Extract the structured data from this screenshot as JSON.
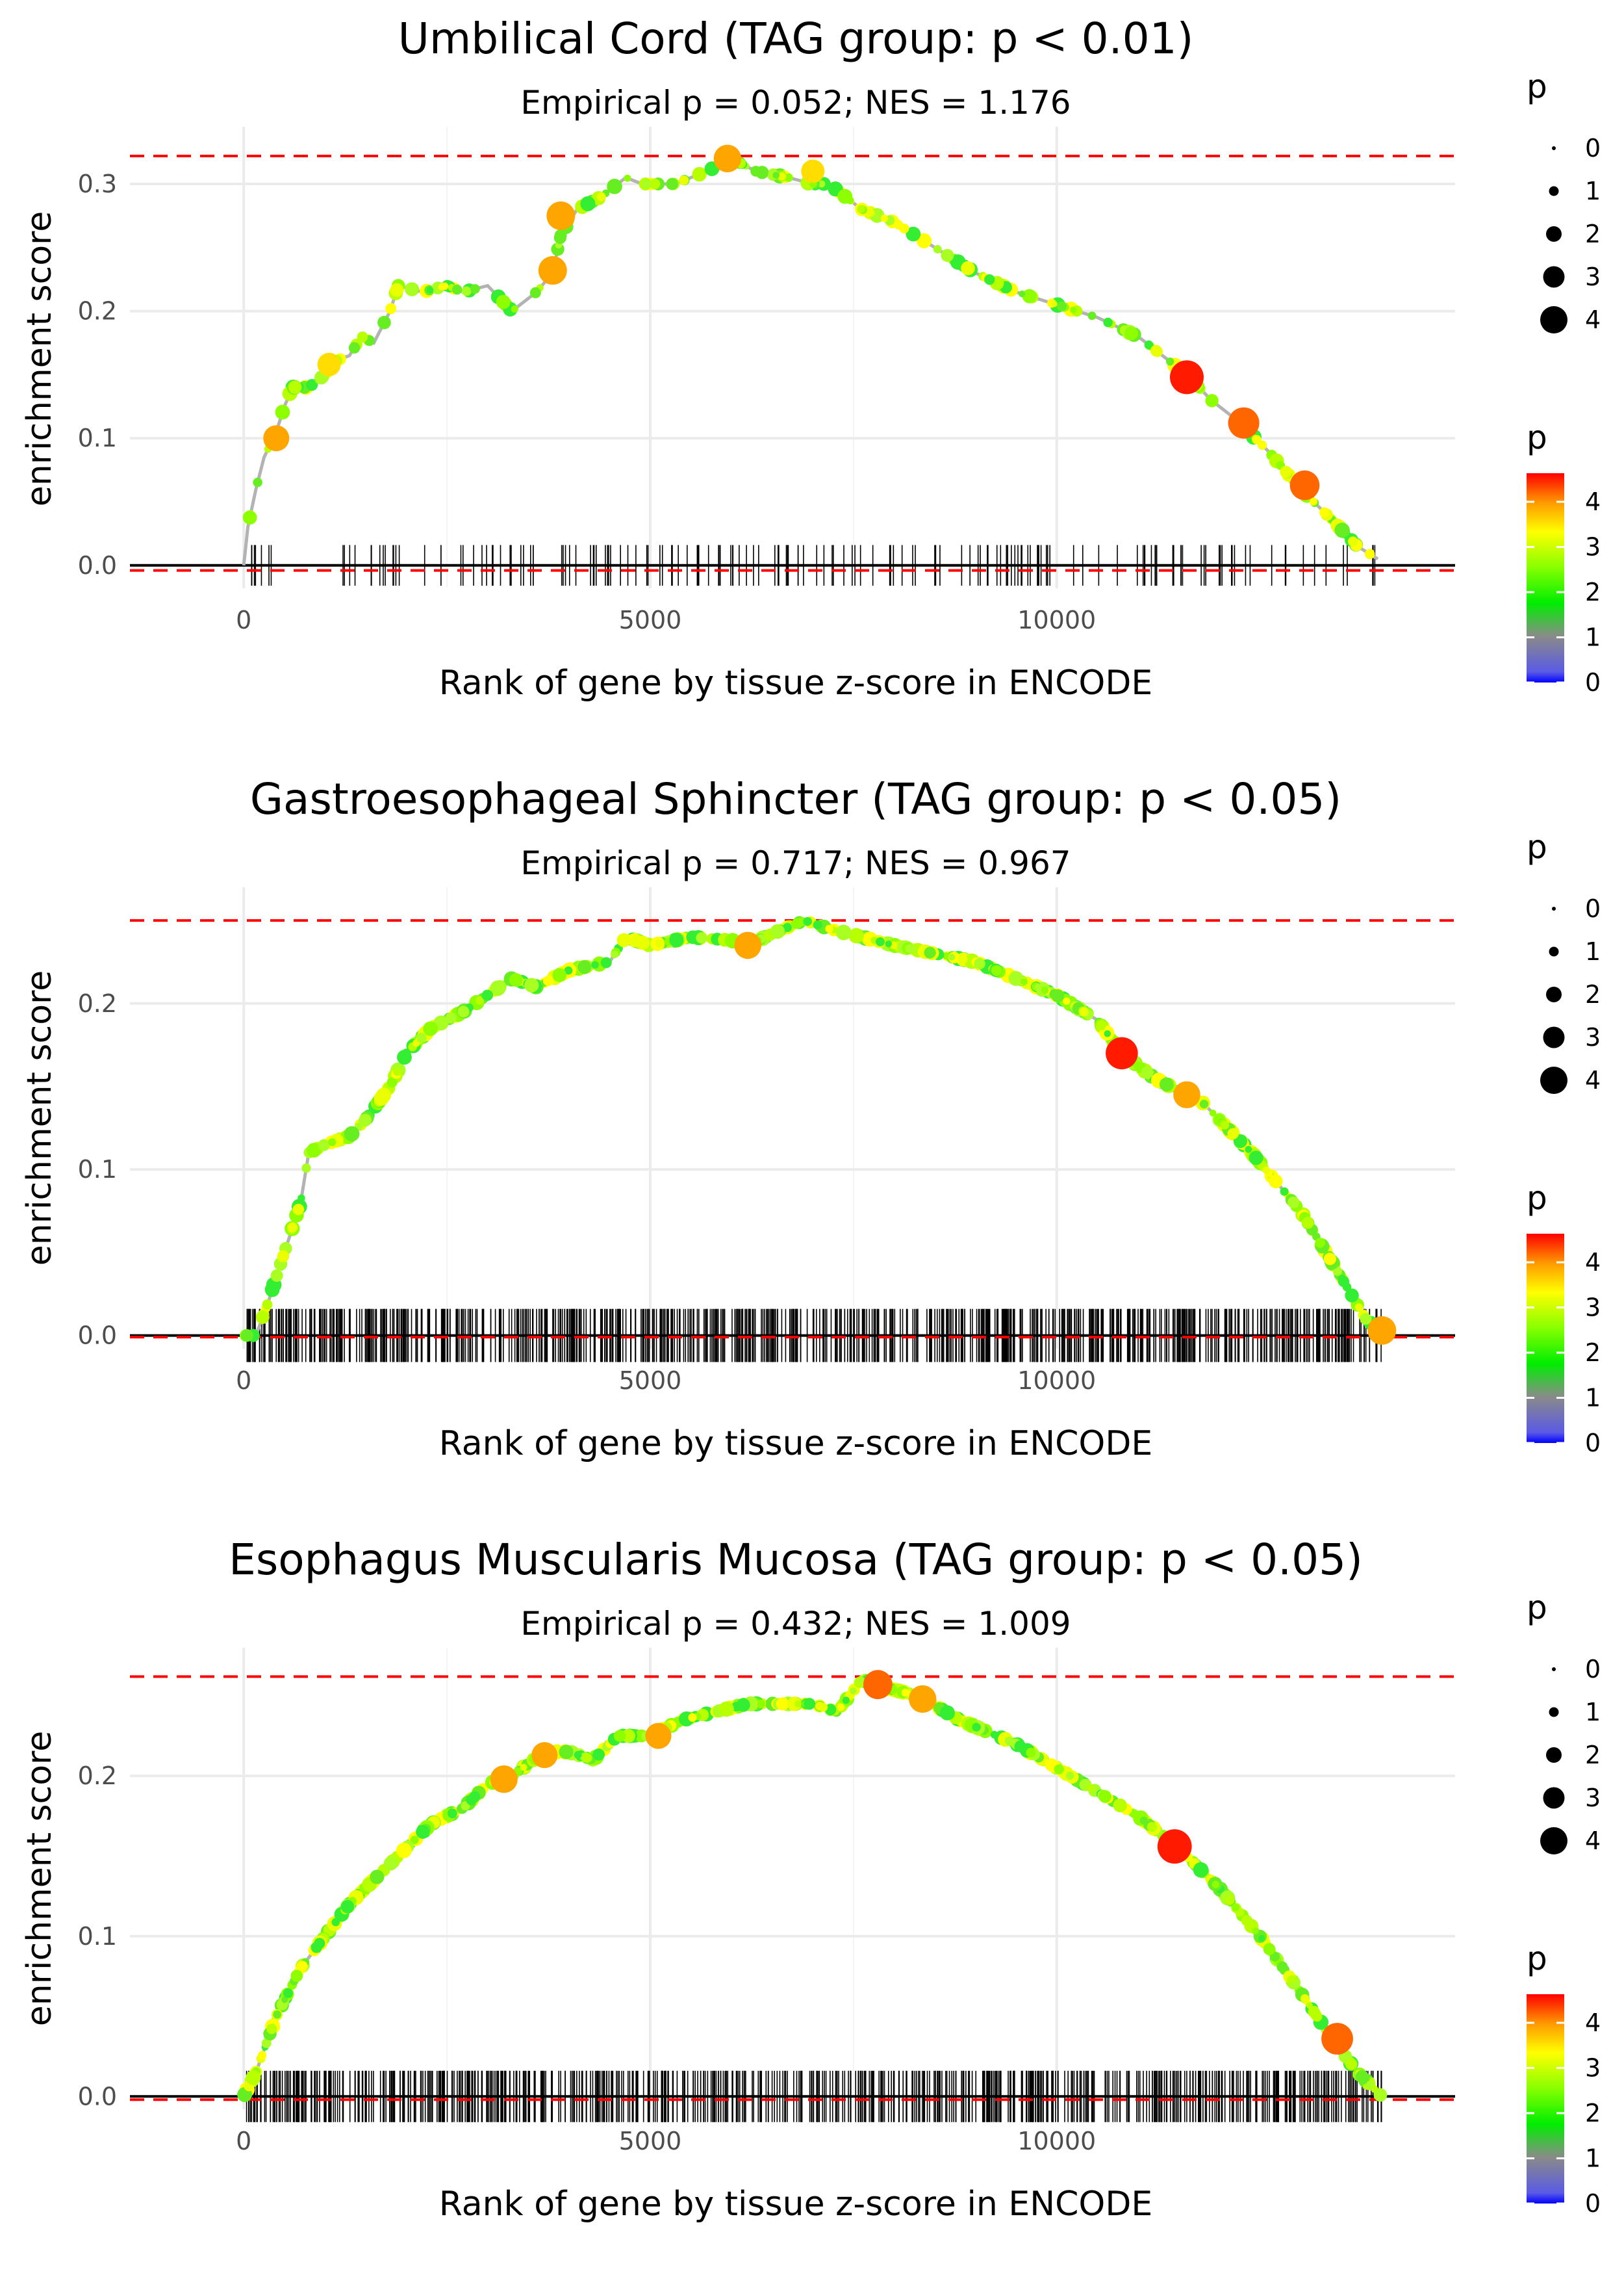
{
  "chart_data": [
    {
      "type": "line",
      "title": "Umbilical Cord (TAG group: p < 0.01)",
      "subtitle": "Empirical p = 0.052; NES = 1.176",
      "xlabel": "Rank of gene by tissue z-score in ENCODE",
      "ylabel": "enrichment score",
      "xlim": [
        -1400,
        14900
      ],
      "ylim": [
        -0.018,
        0.345
      ],
      "xticks": [
        0,
        5000,
        10000
      ],
      "xtick_labels": [
        "0",
        "5000",
        "10000"
      ],
      "yticks": [
        0.0,
        0.1,
        0.2,
        0.3
      ],
      "ytick_labels": [
        "0.0",
        "0.1",
        "0.2",
        "0.3"
      ],
      "hlines": [
        0.322,
        -0.004
      ],
      "x_max_rank": 13950,
      "curve": [
        [
          0,
          0
        ],
        [
          50,
          0.03
        ],
        [
          150,
          0.06
        ],
        [
          250,
          0.085
        ],
        [
          400,
          0.105
        ],
        [
          500,
          0.125
        ],
        [
          600,
          0.14
        ],
        [
          800,
          0.14
        ],
        [
          1000,
          0.15
        ],
        [
          1100,
          0.16
        ],
        [
          1300,
          0.165
        ],
        [
          1450,
          0.18
        ],
        [
          1600,
          0.175
        ],
        [
          1800,
          0.2
        ],
        [
          1900,
          0.22
        ],
        [
          2200,
          0.215
        ],
        [
          2500,
          0.22
        ],
        [
          2700,
          0.215
        ],
        [
          3000,
          0.22
        ],
        [
          3300,
          0.2
        ],
        [
          3600,
          0.215
        ],
        [
          3800,
          0.23
        ],
        [
          3900,
          0.26
        ],
        [
          4100,
          0.28
        ],
        [
          4400,
          0.29
        ],
        [
          4700,
          0.305
        ],
        [
          4900,
          0.3
        ],
        [
          5300,
          0.3
        ],
        [
          5700,
          0.31
        ],
        [
          6000,
          0.32
        ],
        [
          6300,
          0.31
        ],
        [
          6700,
          0.305
        ],
        [
          7000,
          0.3
        ],
        [
          7200,
          0.3
        ],
        [
          7600,
          0.28
        ],
        [
          8000,
          0.27
        ],
        [
          8500,
          0.25
        ],
        [
          9000,
          0.23
        ],
        [
          9500,
          0.215
        ],
        [
          10000,
          0.205
        ],
        [
          10500,
          0.195
        ],
        [
          11000,
          0.18
        ],
        [
          11600,
          0.15
        ],
        [
          11900,
          0.13
        ],
        [
          12200,
          0.115
        ],
        [
          12600,
          0.09
        ],
        [
          13000,
          0.06
        ],
        [
          13400,
          0.035
        ],
        [
          13700,
          0.015
        ],
        [
          13950,
          0.005
        ]
      ],
      "highlights": [
        [
          400,
          0.1,
          3
        ],
        [
          1050,
          0.158,
          2.5
        ],
        [
          3800,
          0.232,
          3.5
        ],
        [
          3900,
          0.275,
          3.5
        ],
        [
          5950,
          0.32,
          3.3
        ],
        [
          7000,
          0.31,
          2.5
        ],
        [
          11600,
          0.148,
          4.5
        ],
        [
          12300,
          0.112,
          4
        ],
        [
          13050,
          0.063,
          3.7
        ]
      ],
      "rug_count": 170,
      "legend": {
        "size_title": "p",
        "size_labels": [
          "0",
          "1",
          "2",
          "3",
          "4"
        ],
        "color_title": "p",
        "color_labels": [
          "4",
          "3",
          "2",
          "1",
          "0"
        ]
      }
    },
    {
      "type": "line",
      "title": "Gastroesophageal Sphincter (TAG group: p < 0.05)",
      "subtitle": "Empirical p = 0.717; NES = 0.967",
      "xlabel": "Rank of gene by tissue z-score in ENCODE",
      "ylabel": "enrichment score",
      "xlim": [
        -1400,
        14900
      ],
      "ylim": [
        -0.008,
        0.27
      ],
      "xticks": [
        0,
        5000,
        10000
      ],
      "xtick_labels": [
        "0",
        "5000",
        "10000"
      ],
      "yticks": [
        0.0,
        0.1,
        0.2
      ],
      "ytick_labels": [
        "0.0",
        "0.1",
        "0.2"
      ],
      "hlines": [
        0.25,
        -0.001
      ],
      "x_max_rank": 14000,
      "curve": [
        [
          150,
          0
        ],
        [
          300,
          0.02
        ],
        [
          500,
          0.05
        ],
        [
          700,
          0.08
        ],
        [
          800,
          0.11
        ],
        [
          1000,
          0.115
        ],
        [
          1300,
          0.12
        ],
        [
          1500,
          0.13
        ],
        [
          1800,
          0.15
        ],
        [
          2000,
          0.17
        ],
        [
          2300,
          0.185
        ],
        [
          2700,
          0.195
        ],
        [
          3000,
          0.205
        ],
        [
          3300,
          0.215
        ],
        [
          3600,
          0.21
        ],
        [
          4000,
          0.22
        ],
        [
          4500,
          0.225
        ],
        [
          4700,
          0.24
        ],
        [
          5000,
          0.235
        ],
        [
          5500,
          0.24
        ],
        [
          6000,
          0.238
        ],
        [
          6200,
          0.235
        ],
        [
          6500,
          0.242
        ],
        [
          6900,
          0.25
        ],
        [
          7200,
          0.245
        ],
        [
          7600,
          0.24
        ],
        [
          8000,
          0.235
        ],
        [
          8500,
          0.23
        ],
        [
          9000,
          0.225
        ],
        [
          9500,
          0.215
        ],
        [
          10000,
          0.205
        ],
        [
          10500,
          0.19
        ],
        [
          10800,
          0.17
        ],
        [
          11200,
          0.155
        ],
        [
          11800,
          0.14
        ],
        [
          12400,
          0.11
        ],
        [
          13000,
          0.075
        ],
        [
          13500,
          0.035
        ],
        [
          13800,
          0.01
        ],
        [
          14000,
          0.002
        ]
      ],
      "highlights": [
        [
          6200,
          0.235,
          3.2
        ],
        [
          10800,
          0.17,
          4.2
        ],
        [
          11600,
          0.145,
          3.2
        ],
        [
          14000,
          0.003,
          3.5
        ]
      ],
      "rug_count": 760,
      "legend": {
        "size_title": "p",
        "size_labels": [
          "0",
          "1",
          "2",
          "3",
          "4"
        ],
        "color_title": "p",
        "color_labels": [
          "4",
          "3",
          "2",
          "1",
          "0"
        ]
      }
    },
    {
      "type": "line",
      "title": "Esophagus Muscularis Mucosa (TAG group: p < 0.05)",
      "subtitle": "Empirical p = 0.432; NES = 1.009",
      "xlabel": "Rank of gene by tissue z-score in ENCODE",
      "ylabel": "enrichment score",
      "xlim": [
        -1400,
        14900
      ],
      "ylim": [
        -0.008,
        0.28
      ],
      "xticks": [
        0,
        5000,
        10000
      ],
      "xtick_labels": [
        "0",
        "5000",
        "10000"
      ],
      "yticks": [
        0.0,
        0.1,
        0.2
      ],
      "ytick_labels": [
        "0.0",
        "0.1",
        "0.2"
      ],
      "hlines": [
        0.262,
        -0.002
      ],
      "x_max_rank": 14000,
      "curve": [
        [
          0,
          0
        ],
        [
          150,
          0.015
        ],
        [
          400,
          0.05
        ],
        [
          700,
          0.08
        ],
        [
          1000,
          0.1
        ],
        [
          1300,
          0.12
        ],
        [
          1600,
          0.135
        ],
        [
          2000,
          0.155
        ],
        [
          2300,
          0.17
        ],
        [
          2700,
          0.18
        ],
        [
          3000,
          0.195
        ],
        [
          3300,
          0.2
        ],
        [
          3700,
          0.215
        ],
        [
          4000,
          0.215
        ],
        [
          4300,
          0.21
        ],
        [
          4600,
          0.225
        ],
        [
          5000,
          0.225
        ],
        [
          5400,
          0.235
        ],
        [
          5800,
          0.24
        ],
        [
          6200,
          0.245
        ],
        [
          6600,
          0.245
        ],
        [
          7000,
          0.245
        ],
        [
          7300,
          0.24
        ],
        [
          7600,
          0.26
        ],
        [
          7900,
          0.255
        ],
        [
          8300,
          0.25
        ],
        [
          8800,
          0.235
        ],
        [
          9500,
          0.22
        ],
        [
          10000,
          0.205
        ],
        [
          10500,
          0.19
        ],
        [
          11000,
          0.175
        ],
        [
          11500,
          0.155
        ],
        [
          12000,
          0.13
        ],
        [
          12500,
          0.1
        ],
        [
          13000,
          0.065
        ],
        [
          13400,
          0.035
        ],
        [
          13700,
          0.015
        ],
        [
          14000,
          0
        ]
      ],
      "highlights": [
        [
          3200,
          0.198,
          3.3
        ],
        [
          3700,
          0.213,
          3
        ],
        [
          5100,
          0.225,
          3
        ],
        [
          7800,
          0.257,
          3.6
        ],
        [
          8350,
          0.248,
          3.3
        ],
        [
          11450,
          0.156,
          4.6
        ],
        [
          13450,
          0.036,
          4.1
        ]
      ],
      "rug_count": 690,
      "legend": {
        "size_title": "p",
        "size_labels": [
          "0",
          "1",
          "2",
          "3",
          "4"
        ],
        "color_title": "p",
        "color_labels": [
          "4",
          "3",
          "2",
          "1",
          "0"
        ]
      }
    }
  ]
}
